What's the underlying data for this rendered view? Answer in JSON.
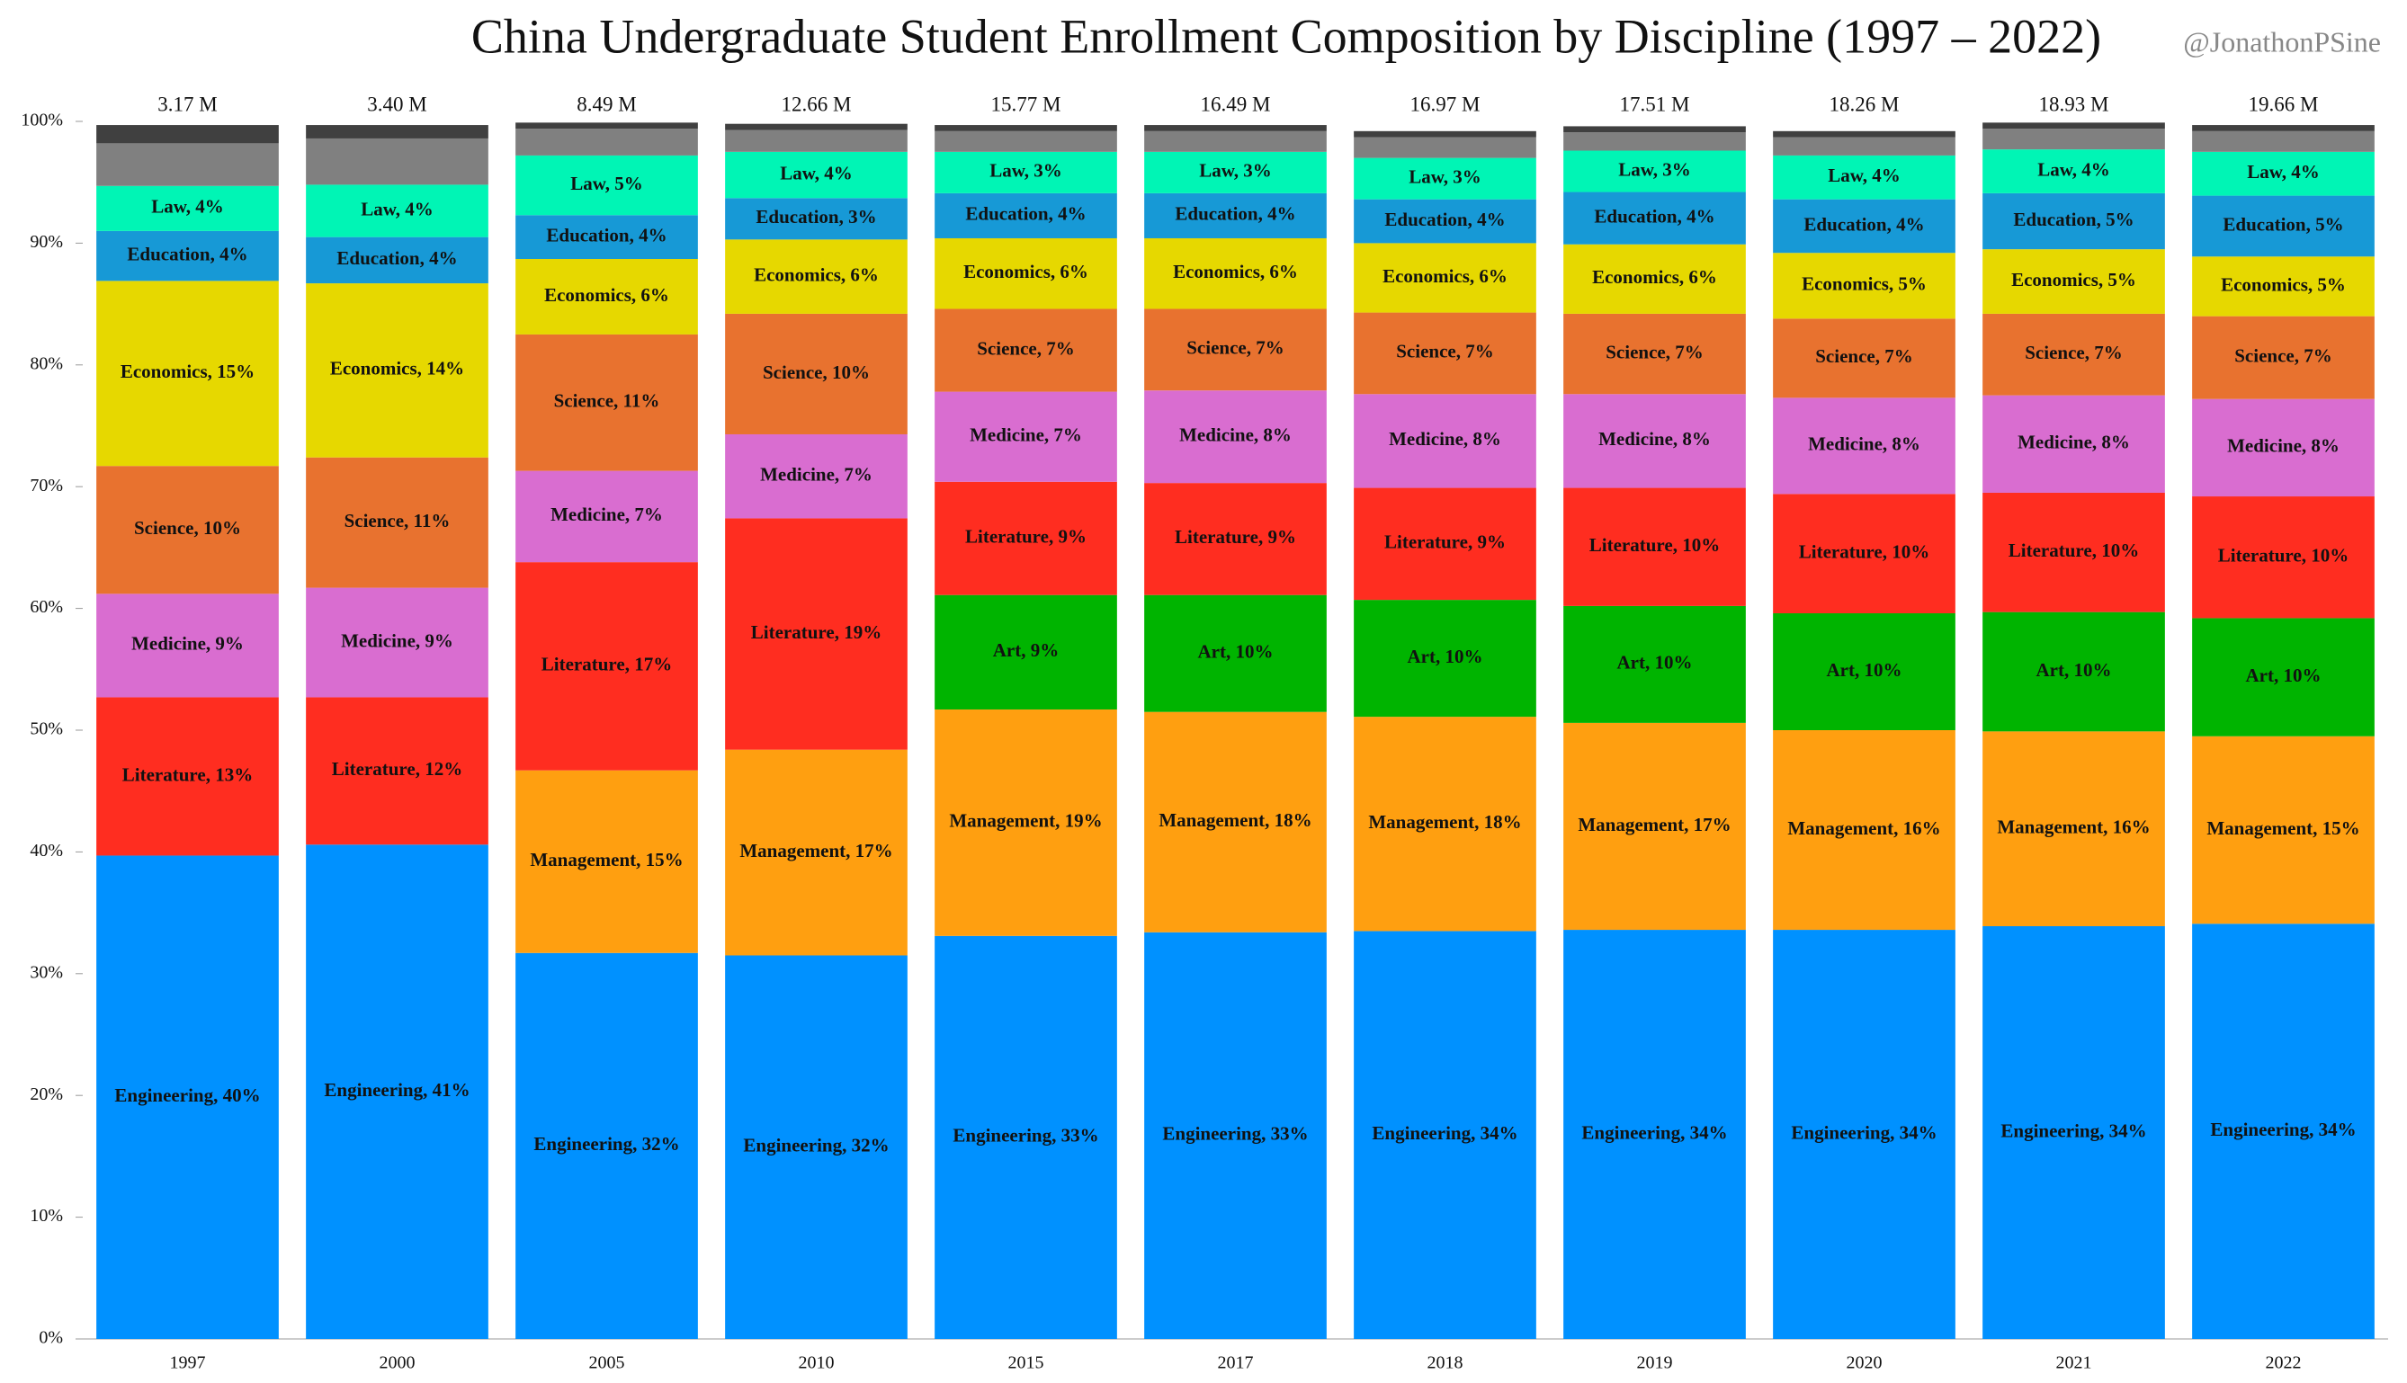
{
  "chart_data": {
    "type": "stacked_bar",
    "title": "China Undergraduate Student Enrollment Composition by Discipline (1997 – 2022)",
    "credit": "@JonathonPSine",
    "categories": [
      "1997",
      "2000",
      "2005",
      "2010",
      "2015",
      "2017",
      "2018",
      "2019",
      "2020",
      "2021",
      "2022"
    ],
    "ylim": [
      0,
      100
    ],
    "yticks": [
      {
        "value": 0,
        "label": "0%"
      },
      {
        "value": 10,
        "label": "10%"
      },
      {
        "value": 20,
        "label": "20%"
      },
      {
        "value": 30,
        "label": "30%"
      },
      {
        "value": 40,
        "label": "40%"
      },
      {
        "value": 50,
        "label": "50%"
      },
      {
        "value": 60,
        "label": "60%"
      },
      {
        "value": 70,
        "label": "70%"
      },
      {
        "value": 80,
        "label": "80%"
      },
      {
        "value": 90,
        "label": "90%"
      },
      {
        "value": 100,
        "label": "100%"
      }
    ],
    "totals": {
      "values": [
        3.17,
        3.4,
        8.49,
        12.66,
        15.77,
        16.49,
        16.97,
        17.51,
        18.26,
        18.93,
        19.66
      ],
      "value_labels": [
        "3.17 M",
        "3.40 M",
        "8.49 M",
        "12.66 M",
        "15.77 M",
        "16.49 M",
        "16.97 M",
        "17.51 M",
        "18.26 M",
        "18.93 M",
        "19.66 M"
      ]
    },
    "series": [
      {
        "color": "#0091ff",
        "values": [
          39.7,
          40.6,
          31.7,
          31.5,
          33.1,
          33.4,
          33.5,
          33.6,
          33.6,
          33.9,
          34.1
        ],
        "value_labels": [
          "Engineering, 40%",
          "Engineering, 41%",
          "Engineering, 32%",
          "Engineering, 32%",
          "Engineering, 33%",
          "Engineering, 33%",
          "Engineering, 34%",
          "Engineering, 34%",
          "Engineering, 34%",
          "Engineering, 34%",
          "Engineering, 34%"
        ]
      },
      {
        "color": "#ff9f10",
        "values": [
          null,
          null,
          15.0,
          16.9,
          18.6,
          18.1,
          17.6,
          17.0,
          16.4,
          16.0,
          15.4
        ],
        "value_labels": [
          null,
          null,
          "Management, 15%",
          "Management, 17%",
          "Management, 19%",
          "Management, 18%",
          "Management, 18%",
          "Management, 17%",
          "Management, 16%",
          "Management, 16%",
          "Management, 15%"
        ]
      },
      {
        "color": "#00b400",
        "values": [
          null,
          null,
          null,
          null,
          9.4,
          9.6,
          9.6,
          9.6,
          9.6,
          9.8,
          9.7
        ],
        "value_labels": [
          null,
          null,
          null,
          null,
          "Art, 9%",
          "Art, 10%",
          "Art, 10%",
          "Art, 10%",
          "Art, 10%",
          "Art, 10%",
          "Art, 10%"
        ]
      },
      {
        "color": "#ff2d20",
        "values": [
          13.0,
          12.1,
          17.1,
          19.0,
          9.3,
          9.2,
          9.2,
          9.7,
          9.8,
          9.8,
          10.0
        ],
        "value_labels": [
          "Literature, 13%",
          "Literature, 12%",
          "Literature, 17%",
          "Literature, 19%",
          "Literature, 9%",
          "Literature, 9%",
          "Literature, 9%",
          "Literature, 10%",
          "Literature, 10%",
          "Literature, 10%",
          "Literature, 10%"
        ]
      },
      {
        "color": "#d96dd0",
        "values": [
          8.5,
          9.0,
          7.5,
          6.9,
          7.4,
          7.6,
          7.7,
          7.7,
          7.9,
          8.0,
          8.0
        ],
        "value_labels": [
          "Medicine, 9%",
          "Medicine, 9%",
          "Medicine, 7%",
          "Medicine, 7%",
          "Medicine, 7%",
          "Medicine, 8%",
          "Medicine, 8%",
          "Medicine, 8%",
          "Medicine, 8%",
          "Medicine, 8%",
          "Medicine, 8%"
        ]
      },
      {
        "color": "#e8722f",
        "values": [
          10.5,
          10.7,
          11.2,
          9.9,
          6.8,
          6.7,
          6.7,
          6.6,
          6.5,
          6.7,
          6.8
        ],
        "value_labels": [
          "Science, 10%",
          "Science, 11%",
          "Science, 11%",
          "Science, 10%",
          "Science, 7%",
          "Science, 7%",
          "Science, 7%",
          "Science, 7%",
          "Science, 7%",
          "Science, 7%",
          "Science, 7%"
        ]
      },
      {
        "color": "#e6d800",
        "values": [
          15.2,
          14.3,
          6.2,
          6.1,
          5.8,
          5.8,
          5.7,
          5.7,
          5.4,
          5.3,
          4.9
        ],
        "value_labels": [
          "Economics, 15%",
          "Economics, 14%",
          "Economics, 6%",
          "Economics, 6%",
          "Economics, 6%",
          "Economics, 6%",
          "Economics, 6%",
          "Economics, 6%",
          "Economics, 5%",
          "Economics, 5%",
          "Economics, 5%"
        ]
      },
      {
        "color": "#1799d6",
        "values": [
          4.1,
          3.8,
          3.6,
          3.4,
          3.7,
          3.7,
          3.6,
          4.3,
          4.4,
          4.6,
          5.0
        ],
        "value_labels": [
          "Education, 4%",
          "Education, 4%",
          "Education, 4%",
          "Education, 3%",
          "Education, 4%",
          "Education, 4%",
          "Education, 4%",
          "Education, 4%",
          "Education, 4%",
          "Education, 5%",
          "Education, 5%"
        ]
      },
      {
        "color": "#00f5b5",
        "values": [
          3.7,
          4.3,
          4.9,
          3.8,
          3.4,
          3.4,
          3.4,
          3.4,
          3.6,
          3.6,
          3.6
        ],
        "value_labels": [
          "Law, 4%",
          "Law, 4%",
          "Law, 5%",
          "Law, 4%",
          "Law, 3%",
          "Law, 3%",
          "Law, 3%",
          "Law, 3%",
          "Law, 4%",
          "Law, 4%",
          "Law, 4%"
        ]
      },
      {
        "color": "#808080",
        "values": [
          3.5,
          3.8,
          2.2,
          1.8,
          1.7,
          1.7,
          1.7,
          1.5,
          1.5,
          1.7,
          1.7
        ]
      },
      {
        "color": "#404040",
        "values": [
          1.5,
          1.1,
          0.5,
          0.5,
          0.5,
          0.5,
          0.5,
          0.5,
          0.5,
          0.5,
          0.5
        ]
      }
    ]
  }
}
